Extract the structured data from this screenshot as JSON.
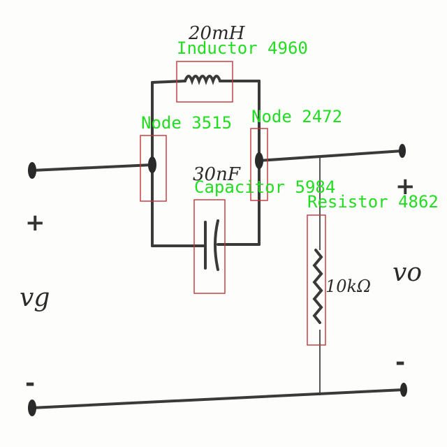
{
  "components": {
    "inductor": {
      "value_label": "20mH",
      "tag": "Inductor 4960"
    },
    "capacitor": {
      "value_label": "30nF",
      "tag": "Capacitor 5984"
    },
    "resistor": {
      "value_label": "10kΩ",
      "tag": "Resistor 4862"
    },
    "node_left": {
      "tag": "Node 3515"
    },
    "node_right": {
      "tag": "Node 2472"
    }
  },
  "terminals": {
    "input_symbol": "vg",
    "output_symbol": "vo",
    "plus": "+",
    "minus": "-"
  },
  "colors": {
    "tag": "#22dd22",
    "box": "#c0353a",
    "wire": "#3a3a3a"
  }
}
